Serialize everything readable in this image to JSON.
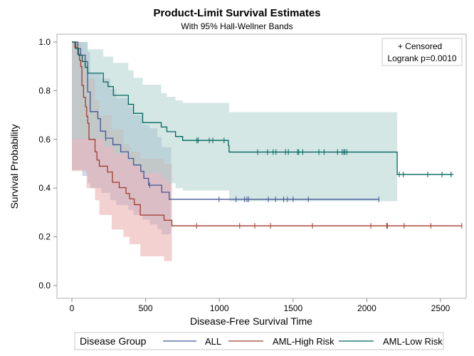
{
  "chart_data": {
    "type": "line",
    "title": "Product-Limit Survival Estimates",
    "subtitle": "With 95% Hall-Wellner Bands",
    "xlabel": "Disease-Free Survival Time",
    "ylabel": "Survival Probability",
    "xlim": [
      0,
      2650
    ],
    "ylim": [
      0,
      1
    ],
    "xticks": [
      "0",
      "500",
      "1000",
      "1500",
      "2000",
      "2500"
    ],
    "yticks": [
      "0.0",
      "0.2",
      "0.4",
      "0.6",
      "0.8",
      "1.0"
    ],
    "grid": false,
    "inset": {
      "censored_label": "+ Censored",
      "logrank": "Logrank p=0.0010"
    },
    "legend": {
      "title": "Disease Group",
      "position": "bottom"
    },
    "series": [
      {
        "name": "ALL",
        "color": "#445694",
        "band_color": "#9FB4CF",
        "end": 2082,
        "steps": [
          [
            0,
            1.0
          ],
          [
            40,
            0.973
          ],
          [
            60,
            0.946
          ],
          [
            90,
            0.92
          ],
          [
            107,
            0.795
          ],
          [
            124,
            0.714
          ],
          [
            176,
            0.685
          ],
          [
            194,
            0.634
          ],
          [
            229,
            0.605
          ],
          [
            278,
            0.578
          ],
          [
            331,
            0.549
          ],
          [
            383,
            0.522
          ],
          [
            418,
            0.495
          ],
          [
            467,
            0.469
          ],
          [
            488,
            0.44
          ],
          [
            520,
            0.412
          ],
          [
            609,
            0.383
          ],
          [
            660,
            0.354
          ]
        ],
        "censored": [
          229,
          528,
          998,
          1113,
          1171,
          1187,
          1198,
          1332,
          1381,
          1436,
          1462,
          1500,
          1603,
          2082
        ],
        "band_end": 673,
        "band": [
          [
            0,
            0.475,
            1.0
          ],
          [
            70,
            0.45,
            1.0
          ],
          [
            107,
            0.42,
            0.96
          ],
          [
            124,
            0.4,
            0.87
          ],
          [
            200,
            0.38,
            0.85
          ],
          [
            260,
            0.35,
            0.807
          ],
          [
            300,
            0.33,
            0.77
          ],
          [
            383,
            0.31,
            0.734
          ],
          [
            418,
            0.29,
            0.7
          ],
          [
            480,
            0.27,
            0.66
          ],
          [
            528,
            0.25,
            0.646
          ],
          [
            580,
            0.23,
            0.61
          ],
          [
            609,
            0.21,
            0.568
          ]
        ]
      },
      {
        "name": "AML-High Risk",
        "color": "#A23A2E",
        "band_color": "#E7A3A3",
        "end": 2644,
        "steps": [
          [
            0,
            1.0
          ],
          [
            20,
            0.978
          ],
          [
            40,
            0.95
          ],
          [
            52,
            0.925
          ],
          [
            60,
            0.899
          ],
          [
            68,
            0.822
          ],
          [
            79,
            0.773
          ],
          [
            92,
            0.734
          ],
          [
            100,
            0.695
          ],
          [
            108,
            0.666
          ],
          [
            116,
            0.6
          ],
          [
            157,
            0.549
          ],
          [
            170,
            0.515
          ],
          [
            186,
            0.49
          ],
          [
            242,
            0.466
          ],
          [
            275,
            0.424
          ],
          [
            321,
            0.402
          ],
          [
            367,
            0.378
          ],
          [
            391,
            0.356
          ],
          [
            423,
            0.332
          ],
          [
            464,
            0.289
          ],
          [
            625,
            0.268
          ],
          [
            678,
            0.245
          ]
        ],
        "censored": [
          846,
          1138,
          1240,
          1347,
          1631,
          2027,
          2135,
          2140,
          2253,
          2434,
          2644
        ],
        "band_end": 678,
        "band": [
          [
            0,
            0.47,
            1.0
          ],
          [
            60,
            0.47,
            0.95
          ],
          [
            100,
            0.4,
            0.85
          ],
          [
            157,
            0.35,
            0.76
          ],
          [
            186,
            0.29,
            0.7
          ],
          [
            270,
            0.23,
            0.64
          ],
          [
            350,
            0.2,
            0.58
          ],
          [
            391,
            0.17,
            0.55
          ],
          [
            464,
            0.12,
            0.52
          ],
          [
            625,
            0.1,
            0.5
          ]
        ]
      },
      {
        "name": "AML-Low Risk",
        "color": "#01665E",
        "band_color": "#A9D0CC",
        "end": 2587,
        "steps": [
          [
            0,
            1.0
          ],
          [
            25,
            0.973
          ],
          [
            45,
            0.946
          ],
          [
            70,
            0.92
          ],
          [
            90,
            0.896
          ],
          [
            107,
            0.872
          ],
          [
            213,
            0.836
          ],
          [
            245,
            0.817
          ],
          [
            281,
            0.781
          ],
          [
            383,
            0.744
          ],
          [
            418,
            0.707
          ],
          [
            480,
            0.669
          ],
          [
            606,
            0.651
          ],
          [
            644,
            0.632
          ],
          [
            703,
            0.612
          ],
          [
            751,
            0.596
          ],
          [
            1061,
            0.575
          ],
          [
            1066,
            0.548
          ],
          [
            2206,
            0.456
          ]
        ],
        "censored": [
          848,
          856,
          932,
          956,
          1032,
          1260,
          1327,
          1365,
          1384,
          1449,
          1468,
          1530,
          1538,
          1565,
          1675,
          1710,
          1801,
          1833,
          1844,
          1852,
          1865,
          2220,
          2248,
          2413,
          2510,
          2571
        ],
        "band_end": 2206,
        "band": [
          [
            0,
            0.6,
            1.0
          ],
          [
            107,
            0.6,
            0.97
          ],
          [
            213,
            0.57,
            0.94
          ],
          [
            281,
            0.54,
            0.914
          ],
          [
            383,
            0.51,
            0.884
          ],
          [
            418,
            0.49,
            0.853
          ],
          [
            480,
            0.46,
            0.825
          ],
          [
            606,
            0.44,
            0.79
          ],
          [
            644,
            0.42,
            0.775
          ],
          [
            703,
            0.4,
            0.76
          ],
          [
            751,
            0.39,
            0.75
          ],
          [
            1066,
            0.346,
            0.712
          ]
        ]
      }
    ]
  }
}
